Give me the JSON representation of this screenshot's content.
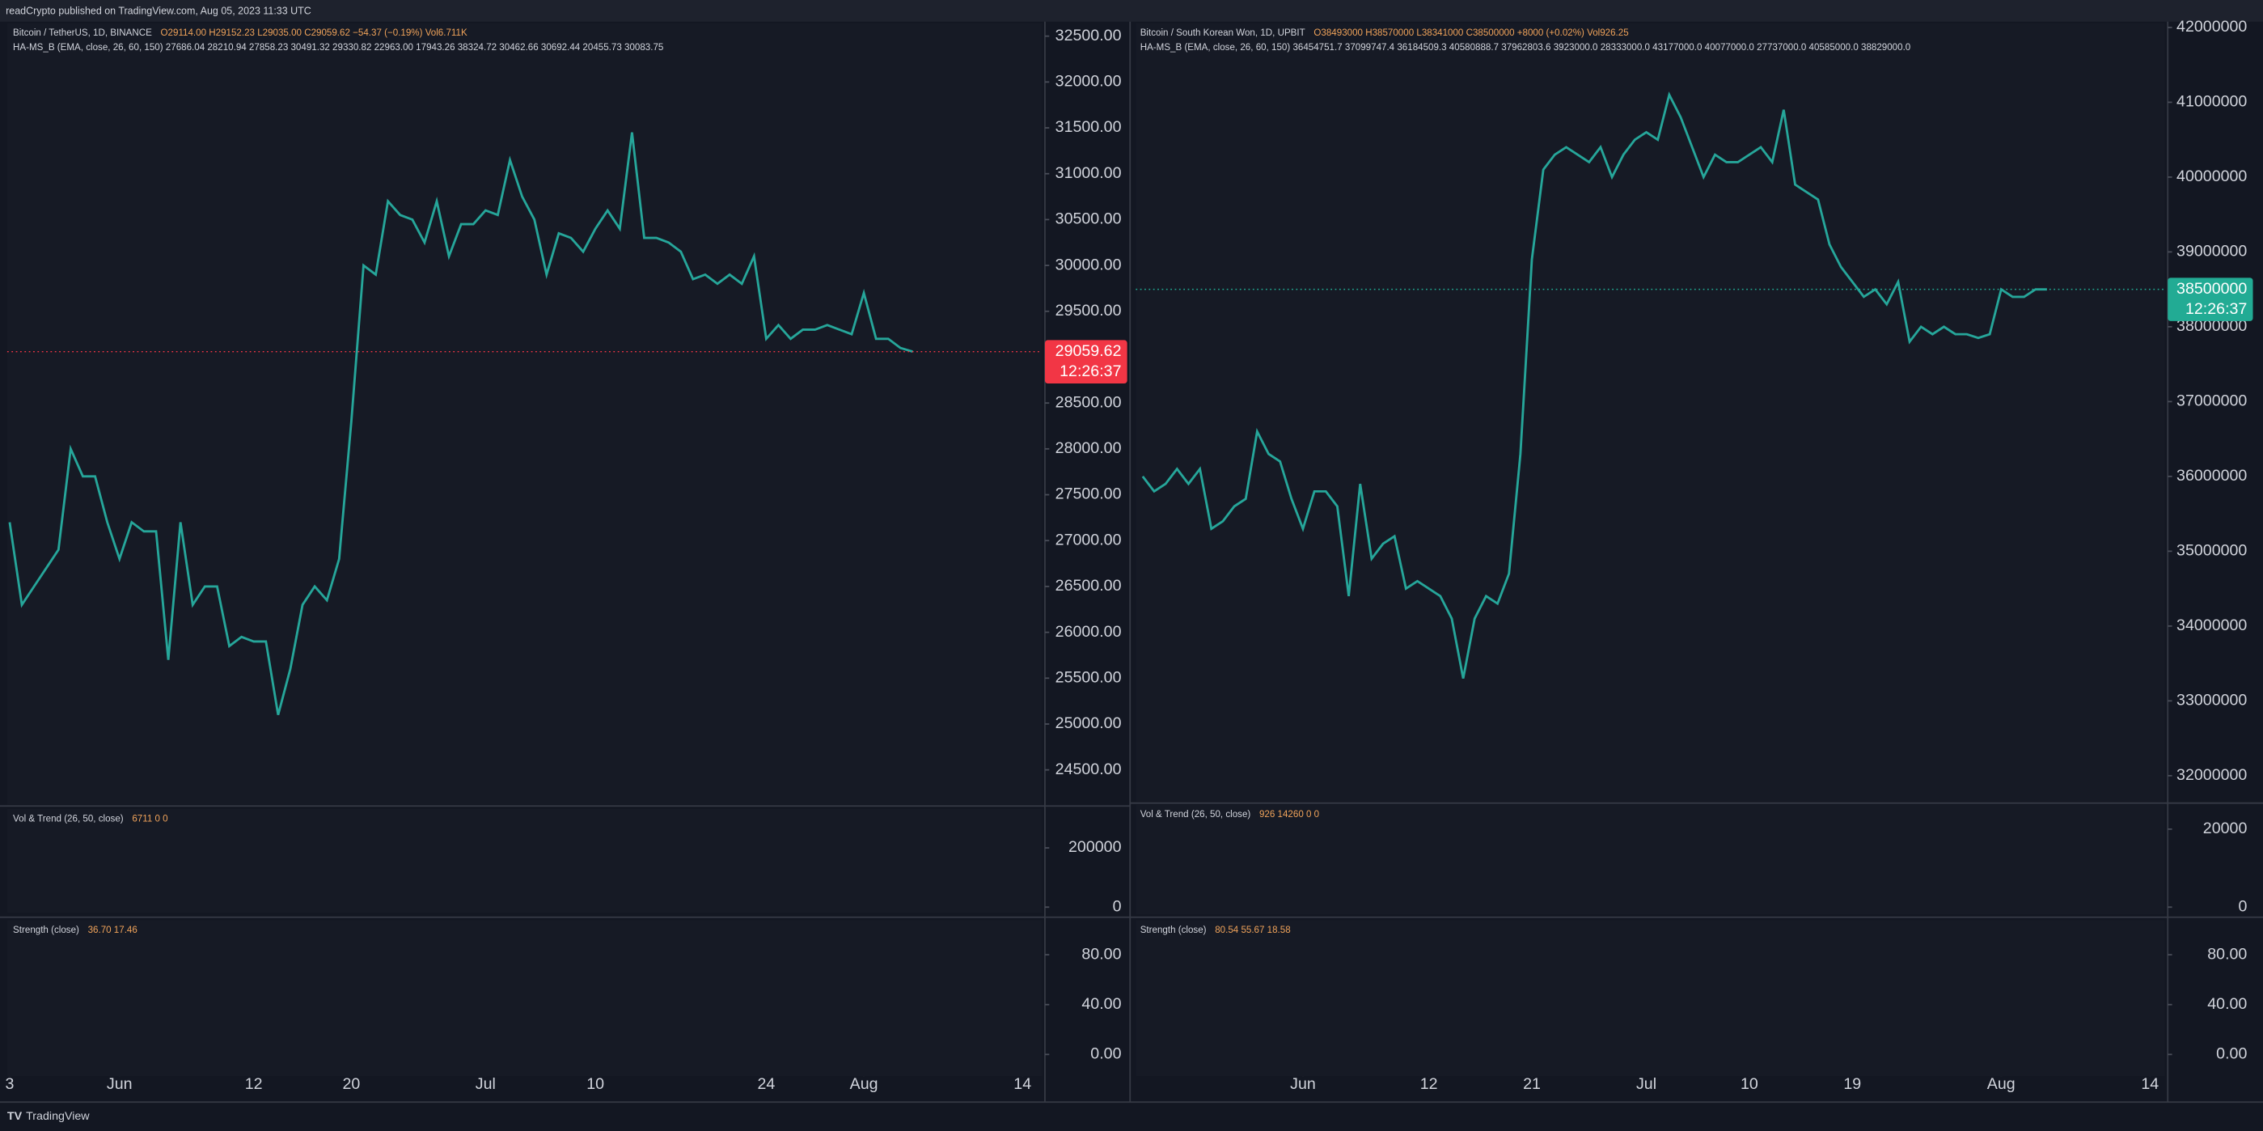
{
  "header": {
    "text": "readCrypto published on TradingView.com, Aug 05, 2023 11:33 UTC"
  },
  "footer": {
    "brand": "TradingView"
  },
  "chart_data": [
    {
      "type": "line",
      "title": "Bitcoin / TetherUS, 1D, BINANCE",
      "legend": "O29114.00 H29152.23 L29035.00 C29059.62 −54.37 (−0.19%) Vol6.711K",
      "indicator": "HA-MS_B (EMA, close, 26, 60, 150) 27686.04 28210.94 27858.23 30491.32 29330.82 22963.00 17943.26 38324.72 30462.66 30692.44 20455.73 30083.75",
      "color": "#26a69a",
      "grid": false,
      "x": [
        143,
        144,
        145,
        146,
        147,
        148,
        149,
        150,
        151,
        152,
        153,
        154,
        155,
        156,
        157,
        158,
        159,
        160,
        161,
        162,
        163,
        164,
        165,
        166,
        167,
        168,
        169,
        170,
        171,
        172,
        173,
        174,
        175,
        176,
        177,
        178,
        179,
        180,
        181,
        182,
        183,
        184,
        185,
        186,
        187,
        188,
        189,
        190,
        191,
        192,
        193,
        194,
        195,
        196,
        197,
        198,
        199,
        200,
        201,
        202,
        203,
        204,
        205,
        206,
        207,
        208,
        209,
        210,
        211,
        212,
        213,
        214,
        215,
        216,
        217
      ],
      "values": [
        27200,
        26300,
        26500,
        26700,
        26900,
        28000,
        27700,
        27700,
        27200,
        26800,
        27200,
        27100,
        27100,
        25700,
        27200,
        26300,
        26500,
        26500,
        25850,
        25950,
        25900,
        25900,
        25100,
        25600,
        26300,
        26500,
        26350,
        26800,
        28300,
        30000,
        29900,
        30700,
        30550,
        30500,
        30250,
        30700,
        30100,
        30450,
        30450,
        30600,
        30550,
        31150,
        30750,
        30500,
        29900,
        30350,
        30300,
        30150,
        30400,
        30600,
        30400,
        31450,
        30300,
        30300,
        30250,
        30150,
        29850,
        29900,
        29800,
        29900,
        29800,
        30100,
        29200,
        29350,
        29200,
        29300,
        29300,
        29350,
        29300,
        29250,
        29700,
        29200,
        29200,
        29100,
        29060
      ],
      "xlim": [
        142.8,
        227.6
      ],
      "xticks": [
        {
          "value": 143,
          "label": "3"
        },
        {
          "value": 152,
          "label": "Jun"
        },
        {
          "value": 163,
          "label": "12"
        },
        {
          "value": 171,
          "label": "20"
        },
        {
          "value": 182,
          "label": "Jul"
        },
        {
          "value": 191,
          "label": "10"
        },
        {
          "value": 205,
          "label": "24"
        },
        {
          "value": 213,
          "label": "Aug"
        },
        {
          "value": 226,
          "label": "14"
        }
      ],
      "ylim": [
        24122,
        32642
      ],
      "yticks": [
        {
          "value": 24500,
          "label": "24500.00"
        },
        {
          "value": 25000,
          "label": "25000.00"
        },
        {
          "value": 25500,
          "label": "25500.00"
        },
        {
          "value": 26000,
          "label": "26000.00"
        },
        {
          "value": 26500,
          "label": "26500.00"
        },
        {
          "value": 27000,
          "label": "27000.00"
        },
        {
          "value": 27500,
          "label": "27500.00"
        },
        {
          "value": 28000,
          "label": "28000.00"
        },
        {
          "value": 28500,
          "label": "28500.00"
        },
        {
          "value": 29000,
          "label": "29000.00"
        },
        {
          "value": 29500,
          "label": "29500.00"
        },
        {
          "value": 30000,
          "label": "30000.00"
        },
        {
          "value": 30500,
          "label": "30500.00"
        },
        {
          "value": 31000,
          "label": "31000.00"
        },
        {
          "value": 31500,
          "label": "31500.00"
        },
        {
          "value": 32000,
          "label": "32000.00"
        },
        {
          "value": 32500,
          "label": "32500.00"
        }
      ],
      "last_price": 29059.62,
      "countdown": "12:26:37",
      "last_color": "#f23645"
    },
    {
      "type": "indicator",
      "title": "Vol & Trend (26, 50, close)",
      "legend": "6711   0  0",
      "ylim": [
        -19500,
        331700
      ],
      "yticks": [
        0,
        200000
      ],
      "grid": false
    },
    {
      "type": "indicator",
      "title": "Strength (close)",
      "legend": "36.70  17.46",
      "ylim": [
        -17.4,
        107.8
      ],
      "yticks": [
        {
          "value": 0,
          "label": "0.00"
        },
        {
          "value": 40,
          "label": "40.00"
        },
        {
          "value": 80,
          "label": "80.00"
        }
      ],
      "grid": false
    },
    {
      "type": "line",
      "title": "Bitcoin / South Korean Won, 1D, UPBIT",
      "legend": "O38493000 H38570000 L38341000 C38500000 +8000 (+0.02%) Vol926.25",
      "indicator": "HA-MS_B (EMA, close, 26, 60, 150) 36454751.7 37099747.4 36184509.3 40580888.7 37962803.6 3923000.0 28333000.0 43177000.0 40077000.0 27737000.0 40585000.0 38829000.0",
      "color": "#26a69a",
      "grid": false,
      "x": [
        138,
        139,
        140,
        141,
        142,
        143,
        144,
        145,
        146,
        147,
        148,
        149,
        150,
        151,
        152,
        153,
        154,
        155,
        156,
        157,
        158,
        159,
        160,
        161,
        162,
        163,
        164,
        165,
        166,
        167,
        168,
        169,
        170,
        171,
        172,
        173,
        174,
        175,
        176,
        177,
        178,
        179,
        180,
        181,
        182,
        183,
        184,
        185,
        186,
        187,
        188,
        189,
        190,
        191,
        192,
        193,
        194,
        195,
        196,
        197,
        198,
        199,
        200,
        201,
        202,
        203,
        204,
        205,
        206,
        207,
        208,
        209,
        210,
        211,
        212,
        213,
        214,
        215,
        216,
        217
      ],
      "values": [
        36000000,
        35800000,
        35900000,
        36100000,
        35900000,
        36100000,
        35300000,
        35400000,
        35600000,
        35700000,
        36600000,
        36300000,
        36200000,
        35700000,
        35300000,
        35800000,
        35800000,
        35600000,
        34400000,
        35900000,
        34900000,
        35100000,
        35200000,
        34500000,
        34600000,
        34500000,
        34400000,
        34100000,
        33300000,
        34100000,
        34400000,
        34300000,
        34700000,
        36300000,
        38900000,
        40100000,
        40300000,
        40400000,
        40300000,
        40200000,
        40400000,
        40000000,
        40300000,
        40500000,
        40600000,
        40500000,
        41100000,
        40800000,
        40400000,
        40000000,
        40300000,
        40200000,
        40200000,
        40300000,
        40400000,
        40200000,
        40900000,
        39900000,
        39800000,
        39700000,
        39100000,
        38800000,
        38600000,
        38400000,
        38500000,
        38300000,
        38600000,
        37800000,
        38000000,
        37900000,
        38000000,
        37900000,
        37900000,
        37850000,
        37900000,
        38500000,
        38400000,
        38400000,
        38500000,
        38500000
      ],
      "xlim": [
        137.4,
        227.3
      ],
      "xticks": [
        {
          "value": 152,
          "label": "Jun"
        },
        {
          "value": 163,
          "label": "12"
        },
        {
          "value": 172,
          "label": "21"
        },
        {
          "value": 182,
          "label": "Jul"
        },
        {
          "value": 191,
          "label": "10"
        },
        {
          "value": 200,
          "label": "19"
        },
        {
          "value": 213,
          "label": "Aug"
        },
        {
          "value": 226,
          "label": "14"
        }
      ],
      "ylim": [
        31653000,
        42058000
      ],
      "yticks": [
        32000000,
        33000000,
        34000000,
        35000000,
        36000000,
        37000000,
        38000000,
        39000000,
        40000000,
        41000000,
        42000000
      ],
      "last_price": 38500000,
      "countdown": "12:26:37",
      "last_color": "#22ab94"
    },
    {
      "type": "indicator",
      "title": "Vol & Trend (26, 50, close)",
      "legend": "926  14260  0  0",
      "ylim": [
        -1850,
        26300
      ],
      "yticks": [
        0,
        20000
      ],
      "grid": false
    },
    {
      "type": "indicator",
      "title": "Strength (close)",
      "legend": "80.54  55.67  18.58",
      "ylim": [
        -17.4,
        107.8
      ],
      "yticks": [
        {
          "value": 0,
          "label": "0.00"
        },
        {
          "value": 40,
          "label": "40.00"
        },
        {
          "value": 80,
          "label": "80.00"
        }
      ],
      "grid": false
    }
  ]
}
